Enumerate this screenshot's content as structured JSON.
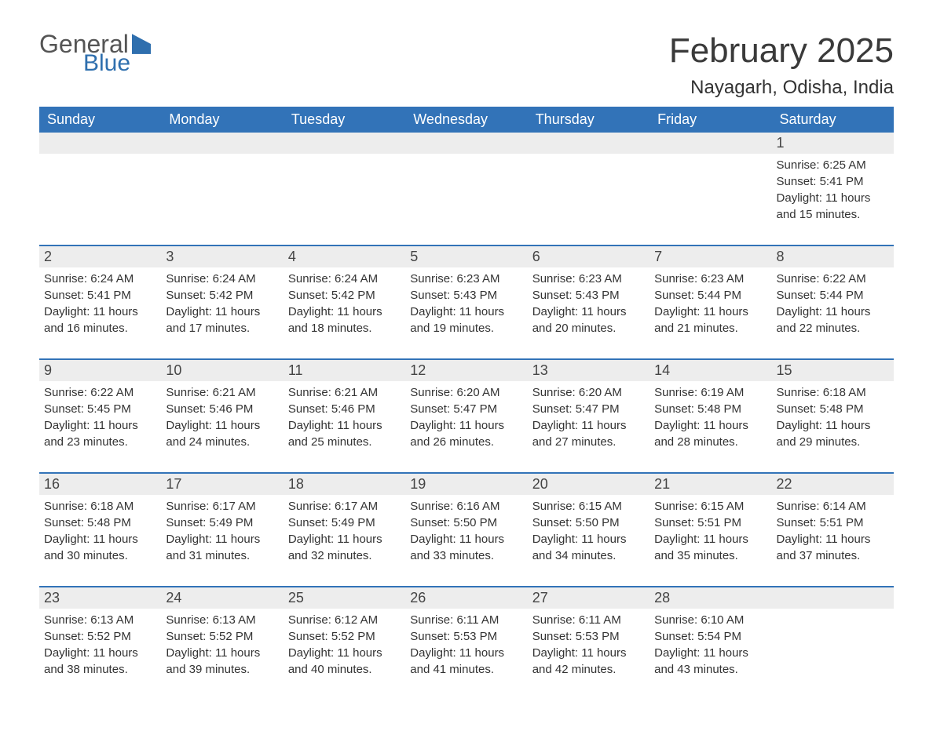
{
  "logo": {
    "word1": "General",
    "word2": "Blue"
  },
  "title": "February 2025",
  "location": "Nayagarh, Odisha, India",
  "colors": {
    "header_bg": "#3273b8",
    "header_text": "#ffffff",
    "band_bg": "#ededed",
    "rule": "#3273b8",
    "body_text": "#333333",
    "page_bg": "#ffffff",
    "logo_gray": "#555555",
    "logo_blue": "#2f6fae"
  },
  "layout": {
    "columns": 7,
    "rows": 5,
    "day_fontsize": 18,
    "body_fontsize": 15,
    "header_fontsize": 18,
    "title_fontsize": 44,
    "location_fontsize": 24
  },
  "weekdays": [
    "Sunday",
    "Monday",
    "Tuesday",
    "Wednesday",
    "Thursday",
    "Friday",
    "Saturday"
  ],
  "labels": {
    "sunrise": "Sunrise:",
    "sunset": "Sunset:",
    "daylight": "Daylight:"
  },
  "weeks": [
    [
      null,
      null,
      null,
      null,
      null,
      null,
      {
        "n": "1",
        "sunrise": "6:25 AM",
        "sunset": "5:41 PM",
        "daylight": "11 hours and 15 minutes."
      }
    ],
    [
      {
        "n": "2",
        "sunrise": "6:24 AM",
        "sunset": "5:41 PM",
        "daylight": "11 hours and 16 minutes."
      },
      {
        "n": "3",
        "sunrise": "6:24 AM",
        "sunset": "5:42 PM",
        "daylight": "11 hours and 17 minutes."
      },
      {
        "n": "4",
        "sunrise": "6:24 AM",
        "sunset": "5:42 PM",
        "daylight": "11 hours and 18 minutes."
      },
      {
        "n": "5",
        "sunrise": "6:23 AM",
        "sunset": "5:43 PM",
        "daylight": "11 hours and 19 minutes."
      },
      {
        "n": "6",
        "sunrise": "6:23 AM",
        "sunset": "5:43 PM",
        "daylight": "11 hours and 20 minutes."
      },
      {
        "n": "7",
        "sunrise": "6:23 AM",
        "sunset": "5:44 PM",
        "daylight": "11 hours and 21 minutes."
      },
      {
        "n": "8",
        "sunrise": "6:22 AM",
        "sunset": "5:44 PM",
        "daylight": "11 hours and 22 minutes."
      }
    ],
    [
      {
        "n": "9",
        "sunrise": "6:22 AM",
        "sunset": "5:45 PM",
        "daylight": "11 hours and 23 minutes."
      },
      {
        "n": "10",
        "sunrise": "6:21 AM",
        "sunset": "5:46 PM",
        "daylight": "11 hours and 24 minutes."
      },
      {
        "n": "11",
        "sunrise": "6:21 AM",
        "sunset": "5:46 PM",
        "daylight": "11 hours and 25 minutes."
      },
      {
        "n": "12",
        "sunrise": "6:20 AM",
        "sunset": "5:47 PM",
        "daylight": "11 hours and 26 minutes."
      },
      {
        "n": "13",
        "sunrise": "6:20 AM",
        "sunset": "5:47 PM",
        "daylight": "11 hours and 27 minutes."
      },
      {
        "n": "14",
        "sunrise": "6:19 AM",
        "sunset": "5:48 PM",
        "daylight": "11 hours and 28 minutes."
      },
      {
        "n": "15",
        "sunrise": "6:18 AM",
        "sunset": "5:48 PM",
        "daylight": "11 hours and 29 minutes."
      }
    ],
    [
      {
        "n": "16",
        "sunrise": "6:18 AM",
        "sunset": "5:48 PM",
        "daylight": "11 hours and 30 minutes."
      },
      {
        "n": "17",
        "sunrise": "6:17 AM",
        "sunset": "5:49 PM",
        "daylight": "11 hours and 31 minutes."
      },
      {
        "n": "18",
        "sunrise": "6:17 AM",
        "sunset": "5:49 PM",
        "daylight": "11 hours and 32 minutes."
      },
      {
        "n": "19",
        "sunrise": "6:16 AM",
        "sunset": "5:50 PM",
        "daylight": "11 hours and 33 minutes."
      },
      {
        "n": "20",
        "sunrise": "6:15 AM",
        "sunset": "5:50 PM",
        "daylight": "11 hours and 34 minutes."
      },
      {
        "n": "21",
        "sunrise": "6:15 AM",
        "sunset": "5:51 PM",
        "daylight": "11 hours and 35 minutes."
      },
      {
        "n": "22",
        "sunrise": "6:14 AM",
        "sunset": "5:51 PM",
        "daylight": "11 hours and 37 minutes."
      }
    ],
    [
      {
        "n": "23",
        "sunrise": "6:13 AM",
        "sunset": "5:52 PM",
        "daylight": "11 hours and 38 minutes."
      },
      {
        "n": "24",
        "sunrise": "6:13 AM",
        "sunset": "5:52 PM",
        "daylight": "11 hours and 39 minutes."
      },
      {
        "n": "25",
        "sunrise": "6:12 AM",
        "sunset": "5:52 PM",
        "daylight": "11 hours and 40 minutes."
      },
      {
        "n": "26",
        "sunrise": "6:11 AM",
        "sunset": "5:53 PM",
        "daylight": "11 hours and 41 minutes."
      },
      {
        "n": "27",
        "sunrise": "6:11 AM",
        "sunset": "5:53 PM",
        "daylight": "11 hours and 42 minutes."
      },
      {
        "n": "28",
        "sunrise": "6:10 AM",
        "sunset": "5:54 PM",
        "daylight": "11 hours and 43 minutes."
      },
      null
    ]
  ]
}
